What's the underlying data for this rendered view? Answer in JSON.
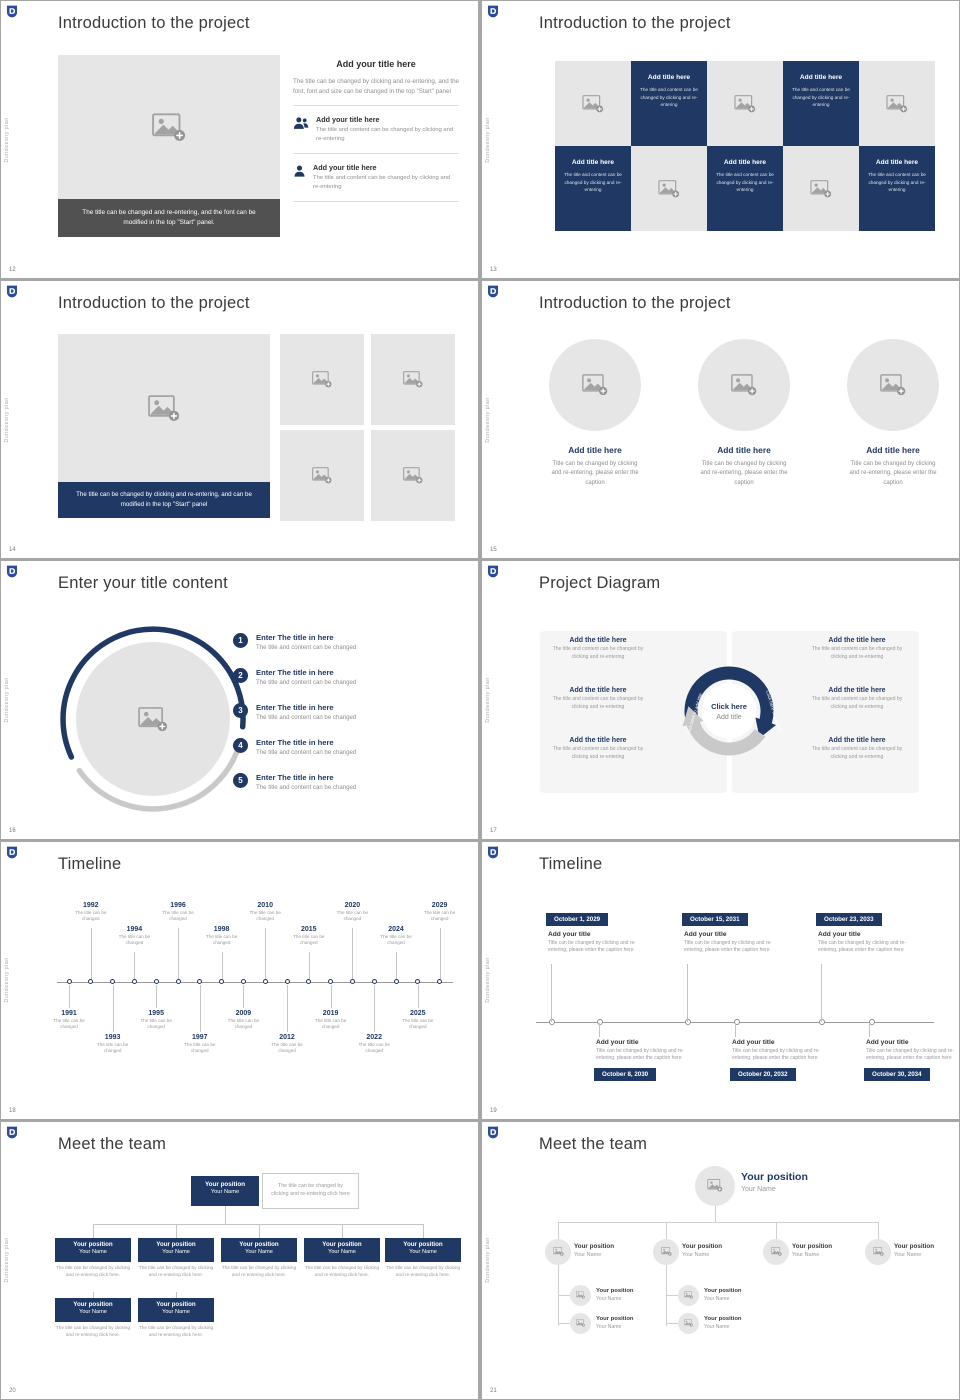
{
  "colors": {
    "navy": "#1f3864",
    "logo_blue": "#2a4d9b",
    "placeholder_gray": "#e7e6e6",
    "dark_caption_bar": "#515151",
    "page_background": "#a6a6a6"
  },
  "frame": {
    "sidebar_text": "Dundeesny plan"
  },
  "slide12": {
    "page": "12",
    "title": "Introduction to the project",
    "image_caption": "The title can be changed and re-entering, and the font can be modified in the top \"Start\" panel.",
    "right": {
      "title": "Add your title here",
      "body": "The title can be changed by clicking and re-entering, and the font, font and size can be changed in the top \"Start\" panel",
      "items": [
        {
          "icon": "people-icon",
          "title": "Add your title here",
          "body": "The title and content can be changed by clicking and re-entering"
        },
        {
          "icon": "person-icon",
          "title": "Add your title here",
          "body": "The title and content can be changed by clicking and re-entering"
        }
      ]
    }
  },
  "slide13": {
    "page": "13",
    "title": "Introduction to the project",
    "cell_title": "Add title here",
    "cell_body": "The title and content can be changed by clicking and re-entering",
    "pattern": [
      "image",
      "text",
      "image",
      "text",
      "image",
      "text",
      "image",
      "text",
      "image",
      "text"
    ]
  },
  "slide14": {
    "page": "14",
    "title": "Introduction to the project",
    "image_caption": "The title can be changed by clicking and re-entering, and can be modified in the top \"Start\" panel"
  },
  "slide15": {
    "page": "15",
    "title": "Introduction to the project",
    "columns": [
      {
        "title": "Add title here",
        "body": "Title can be changed by clicking and re-entering, please enter the caption"
      },
      {
        "title": "Add title here",
        "body": "Title can be changed by clicking and re-entering, please enter the caption"
      },
      {
        "title": "Add title here",
        "body": "Title can be changed by clicking and re-entering, please enter the caption"
      }
    ]
  },
  "slide16": {
    "page": "16",
    "title": "Enter your title content",
    "items": [
      {
        "num": "1",
        "title": "Enter The title in here",
        "body": "The title and content can be changed"
      },
      {
        "num": "2",
        "title": "Enter The title in here",
        "body": "The title and content can be changed"
      },
      {
        "num": "3",
        "title": "Enter The title in here",
        "body": "The title and content can be changed"
      },
      {
        "num": "4",
        "title": "Enter The title in here",
        "body": "The title and content can be changed"
      },
      {
        "num": "5",
        "title": "Enter The title in here",
        "body": "The title and content can be changed"
      }
    ]
  },
  "slide17": {
    "page": "17",
    "title": "Project Diagram",
    "center": {
      "line1": "Click here",
      "line2": "Add title"
    },
    "arc_label": "Click here to add title",
    "left_items": [
      {
        "title": "Add the title here",
        "body": "The title and content can be changed by clicking and re-entering"
      },
      {
        "title": "Add the title here",
        "body": "The title and content can be changed by clicking and re-entering"
      },
      {
        "title": "Add the title here",
        "body": "The title and content can be changed by clicking and re-entering"
      }
    ],
    "right_items": [
      {
        "title": "Add the title here",
        "body": "The title and content can be changed by clicking and re-entering"
      },
      {
        "title": "Add the title here",
        "body": "The title and content can be changed by clicking and re-entering"
      },
      {
        "title": "Add the title here",
        "body": "The title and content can be changed by clicking and re-entering"
      }
    ]
  },
  "slide18": {
    "page": "18",
    "title": "Timeline",
    "entry_caption": "The title can be changed",
    "entries": [
      {
        "year": "1991",
        "side": "bottom",
        "level": 1
      },
      {
        "year": "1992",
        "side": "top",
        "level": 1
      },
      {
        "year": "1993",
        "side": "bottom",
        "level": 2
      },
      {
        "year": "1994",
        "side": "top",
        "level": 2
      },
      {
        "year": "1995",
        "side": "bottom",
        "level": 1
      },
      {
        "year": "1996",
        "side": "top",
        "level": 1
      },
      {
        "year": "1997",
        "side": "bottom",
        "level": 2
      },
      {
        "year": "1998",
        "side": "top",
        "level": 2
      },
      {
        "year": "2009",
        "side": "bottom",
        "level": 1
      },
      {
        "year": "2010",
        "side": "top",
        "level": 1
      },
      {
        "year": "2012",
        "side": "bottom",
        "level": 2
      },
      {
        "year": "2015",
        "side": "top",
        "level": 2
      },
      {
        "year": "2019",
        "side": "bottom",
        "level": 1
      },
      {
        "year": "2020",
        "side": "top",
        "level": 1
      },
      {
        "year": "2022",
        "side": "bottom",
        "level": 2
      },
      {
        "year": "2024",
        "side": "top",
        "level": 2
      },
      {
        "year": "2025",
        "side": "bottom",
        "level": 1
      },
      {
        "year": "2029",
        "side": "top",
        "level": 1
      }
    ]
  },
  "slide19": {
    "page": "19",
    "title": "Timeline",
    "item_title": "Add your title",
    "item_body": "Title can be changed by clicking and re-entering, please enter the caption here",
    "top_events": [
      {
        "date": "October 1, 2029"
      },
      {
        "date": "October 15, 2031"
      },
      {
        "date": "October 23, 2033"
      }
    ],
    "bottom_events": [
      {
        "date": "October 8, 2030"
      },
      {
        "date": "October 20, 2032"
      },
      {
        "date": "October 30, 2034"
      }
    ]
  },
  "slide20": {
    "page": "20",
    "title": "Meet the team",
    "root": {
      "position": "Your position",
      "name": "Your Name"
    },
    "note": "The title can be changed by clicking and re-entering click here",
    "member_caption": "The title can be changed by clicking and re-entering click here.",
    "row2": [
      {
        "position": "Your position",
        "name": "Your Name"
      },
      {
        "position": "Your position",
        "name": "Your Name"
      },
      {
        "position": "Your position",
        "name": "Your Name"
      },
      {
        "position": "Your position",
        "name": "Your Name"
      },
      {
        "position": "Your position",
        "name": "Your Name"
      }
    ],
    "row3": [
      {
        "position": "Your position",
        "name": "Your Name"
      },
      {
        "position": "Your position",
        "name": "Your Name"
      }
    ]
  },
  "slide21": {
    "page": "21",
    "title": "Meet the team",
    "root": {
      "position": "Your position",
      "name": "Your Name"
    },
    "level2": [
      {
        "position": "Your position",
        "name": "Your Name"
      },
      {
        "position": "Your position",
        "name": "Your Name"
      },
      {
        "position": "Your position",
        "name": "Your Name"
      },
      {
        "position": "Your position",
        "name": "Your Name"
      }
    ],
    "level3_groups": [
      [
        {
          "position": "Your position",
          "name": "Your Name"
        },
        {
          "position": "Your position",
          "name": "Your Name"
        }
      ],
      [
        {
          "position": "Your position",
          "name": "Your Name"
        },
        {
          "position": "Your position",
          "name": "Your Name"
        }
      ]
    ]
  }
}
